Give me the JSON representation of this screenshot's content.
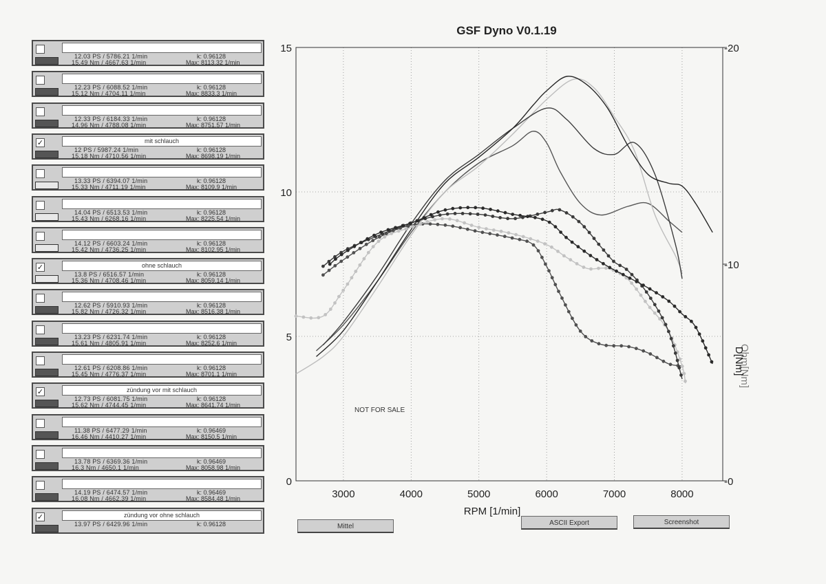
{
  "runs": [
    {
      "checked": false,
      "name": "",
      "line1": "12.03 PS / 5786.21 1/min",
      "line2": "15.49 Nm / 4667.63 1/min",
      "k": "k: 0.96128",
      "max": "Max: 8113.32 1/min",
      "swatch": "dark"
    },
    {
      "checked": false,
      "name": "",
      "line1": "12.23 PS / 6088.52 1/min",
      "line2": "15.12 Nm / 4704.11 1/min",
      "k": "k: 0.96128",
      "max": "Max: 8833.3 1/min",
      "swatch": "dark"
    },
    {
      "checked": false,
      "name": "",
      "line1": "12.33 PS / 6184.33 1/min",
      "line2": "14.96 Nm / 4788.08 1/min",
      "k": "k: 0.96128",
      "max": "Max: 8751.57 1/min",
      "swatch": "dark"
    },
    {
      "checked": true,
      "name": "mit schlauch",
      "line1": "12 PS / 5987.24 1/min",
      "line2": "15.18 Nm / 4710.56 1/min",
      "k": "k: 0.96128",
      "max": "Max: 8698.19 1/min",
      "swatch": "dark"
    },
    {
      "checked": false,
      "name": "",
      "line1": "13.33 PS / 6394.07 1/min",
      "line2": "15.33 Nm / 4711.19 1/min",
      "k": "k: 0.96128",
      "max": "Max: 8109.9 1/min",
      "swatch": "light"
    },
    {
      "checked": false,
      "name": "",
      "line1": "14.04 PS / 6513.53 1/min",
      "line2": "15.43 Nm / 6268.16 1/min",
      "k": "k: 0.96128",
      "max": "Max: 8225.54 1/min",
      "swatch": "light"
    },
    {
      "checked": false,
      "name": "",
      "line1": "14.12 PS / 6603.24 1/min",
      "line2": "15.42 Nm / 4736.25 1/min",
      "k": "k: 0.96128",
      "max": "Max: 8102.95 1/min",
      "swatch": "light"
    },
    {
      "checked": true,
      "name": "ohne schlauch",
      "line1": "13.8 PS / 6516.57 1/min",
      "line2": "15.36 Nm / 4708.46 1/min",
      "k": "k: 0.96128",
      "max": "Max: 8059.14 1/min",
      "swatch": "light"
    },
    {
      "checked": false,
      "name": "",
      "line1": "12.62 PS / 5910.93 1/min",
      "line2": "15.82 Nm / 4726.32 1/min",
      "k": "k: 0.96128",
      "max": "Max: 8516.38 1/min",
      "swatch": "dark"
    },
    {
      "checked": false,
      "name": "",
      "line1": "13.23 PS / 6231.74 1/min",
      "line2": "15.61 Nm / 4805.91 1/min",
      "k": "k: 0.96128",
      "max": "Max: 8252.6 1/min",
      "swatch": "dark"
    },
    {
      "checked": false,
      "name": "",
      "line1": "12.61 PS / 6208.86 1/min",
      "line2": "15.45 Nm / 4776.37 1/min",
      "k": "k: 0.96128",
      "max": "Max: 8701.1 1/min",
      "swatch": "dark"
    },
    {
      "checked": true,
      "name": "zündung vor mit schlauch",
      "line1": "12.73 PS / 6081.75 1/min",
      "line2": "15.62 Nm / 4744.45 1/min",
      "k": "k: 0.96128",
      "max": "Max: 8641.74 1/min",
      "swatch": "dark"
    },
    {
      "checked": false,
      "name": "",
      "line1": "11.38 PS / 6477.29 1/min",
      "line2": "16.46 Nm / 4410.27 1/min",
      "k": "k: 0.96469",
      "max": "Max: 8150.5 1/min",
      "swatch": "dark"
    },
    {
      "checked": false,
      "name": "",
      "line1": "13.78 PS / 6369.36 1/min",
      "line2": "16.3 Nm / 4650.1 1/min",
      "k": "k: 0.96469",
      "max": "Max: 8058.98 1/min",
      "swatch": "dark"
    },
    {
      "checked": false,
      "name": "",
      "line1": "14.19 PS / 6474.57 1/min",
      "line2": "16.08 Nm / 4662.39 1/min",
      "k": "k: 0.96469",
      "max": "Max: 8584.48 1/min",
      "swatch": "dark"
    },
    {
      "checked": true,
      "name": "zündung vor ohne schlauch",
      "line1": "13.97 PS / 6429.96 1/min",
      "line2": "",
      "k": "k: 0.96128",
      "max": "",
      "swatch": "dark"
    }
  ],
  "buttons": {
    "mittel": "Mittel",
    "ascii": "ASCII Export",
    "screenshot": "Screenshot"
  },
  "watermark": "NOT FOR SALE",
  "chart_data": {
    "type": "line",
    "title": "GSF Dyno V0.1.19",
    "xlabel": "RPM [1/min]",
    "ylabel_right": "D[Nm]",
    "ylabel_right_overlay": "Ohm[Nm]",
    "xlim": [
      2300,
      8600
    ],
    "ylim_left": [
      0,
      15
    ],
    "ylim_right": [
      0,
      20
    ],
    "x_ticks": [
      "3000",
      "4000",
      "5000",
      "6000",
      "7000",
      "8000"
    ],
    "y_ticks_left": [
      "0",
      "5",
      "10",
      "15"
    ],
    "y_ticks_right": [
      "-0",
      "-10",
      "-20"
    ],
    "grid": true,
    "series": [
      {
        "name": "mit schlauch (PS)",
        "kind": "power",
        "color": "#555555",
        "x": [
          2600,
          3000,
          3500,
          4000,
          4500,
          5000,
          5500,
          5800,
          6000,
          6200,
          6500,
          6800,
          7200,
          7500,
          7800,
          8000
        ],
        "y": [
          4.5,
          5.4,
          6.9,
          8.6,
          10.0,
          11.0,
          11.6,
          12.1,
          11.7,
          10.7,
          9.6,
          9.2,
          9.5,
          9.6,
          9.0,
          8.6
        ]
      },
      {
        "name": "ohne schlauch (PS)",
        "kind": "power",
        "color": "#bdbdbd",
        "x": [
          2300,
          2700,
          3000,
          3500,
          4000,
          4500,
          5000,
          5500,
          6000,
          6400,
          6700,
          7000,
          7300,
          7600,
          7900,
          8000
        ],
        "y": [
          3.7,
          4.3,
          5.0,
          6.7,
          8.5,
          10.0,
          10.9,
          12.0,
          13.2,
          13.9,
          13.6,
          12.6,
          11.4,
          9.2,
          7.8,
          7.2
        ]
      },
      {
        "name": "zündung vor mit schlauch (PS)",
        "kind": "power",
        "color": "#3c3c3c",
        "x": [
          2700,
          3000,
          3500,
          4000,
          4500,
          5000,
          5500,
          6000,
          6300,
          6700,
          7000,
          7300,
          7600,
          7900,
          8000
        ],
        "y": [
          4.7,
          5.5,
          7.1,
          8.9,
          10.4,
          11.3,
          12.2,
          12.9,
          12.5,
          11.5,
          11.3,
          11.7,
          10.6,
          8.2,
          7.0
        ]
      },
      {
        "name": "zündung vor ohne schlauch (PS)",
        "kind": "power",
        "color": "#262626",
        "x": [
          2600,
          3000,
          3500,
          4000,
          4500,
          5000,
          5500,
          5800,
          6000,
          6300,
          6600,
          6900,
          7200,
          7500,
          7800,
          8000,
          8200,
          8450
        ],
        "y": [
          4.3,
          5.2,
          6.9,
          8.7,
          10.3,
          11.2,
          12.2,
          13.0,
          13.5,
          14.0,
          13.7,
          12.9,
          11.6,
          10.6,
          10.3,
          10.2,
          9.6,
          8.6
        ]
      },
      {
        "name": "mit schlauch (Nm)",
        "kind": "torque",
        "color": "#505050",
        "x": [
          2700,
          3000,
          3500,
          4000,
          4500,
          5000,
          5500,
          5800,
          6000,
          6200,
          6500,
          6800,
          7200,
          7500,
          7800,
          8000
        ],
        "y": [
          9.5,
          10.2,
          11.2,
          11.8,
          11.8,
          11.5,
          11.2,
          10.9,
          9.9,
          8.6,
          6.9,
          6.3,
          6.2,
          5.9,
          5.4,
          5.3
        ]
      },
      {
        "name": "ohne schlauch (Nm)",
        "kind": "torque",
        "color": "#c2c2c2",
        "x": [
          2300,
          2700,
          3000,
          3500,
          4000,
          4500,
          5000,
          5500,
          6000,
          6300,
          6600,
          6900,
          7200,
          7500,
          7800,
          8000,
          8050
        ],
        "y": [
          7.6,
          7.6,
          8.8,
          11.0,
          11.7,
          12.1,
          11.7,
          11.4,
          10.9,
          10.3,
          9.8,
          9.8,
          9.3,
          8.1,
          6.9,
          5.3,
          4.5
        ]
      },
      {
        "name": "zündung vor mit schlauch (Nm)",
        "kind": "torque",
        "color": "#3a3a3a",
        "x": [
          2700,
          3000,
          3500,
          4000,
          4500,
          5000,
          5500,
          6000,
          6200,
          6500,
          6800,
          7000,
          7200,
          7500,
          7800,
          8000
        ],
        "y": [
          9.9,
          10.6,
          11.3,
          11.9,
          12.3,
          12.3,
          12.1,
          12.4,
          12.5,
          11.9,
          10.8,
          10.1,
          9.7,
          8.6,
          6.9,
          4.7
        ]
      },
      {
        "name": "zündung vor ohne schlauch (Nm)",
        "kind": "torque",
        "color": "#2a2a2a",
        "x": [
          2800,
          3000,
          3500,
          4000,
          4500,
          5000,
          5500,
          6000,
          6300,
          6600,
          6900,
          7200,
          7500,
          7800,
          8000,
          8200,
          8450
        ],
        "y": [
          10.0,
          10.5,
          11.4,
          11.9,
          12.5,
          12.6,
          12.3,
          12.0,
          11.2,
          10.5,
          9.9,
          9.4,
          8.9,
          8.3,
          7.7,
          7.1,
          5.4
        ]
      }
    ]
  }
}
